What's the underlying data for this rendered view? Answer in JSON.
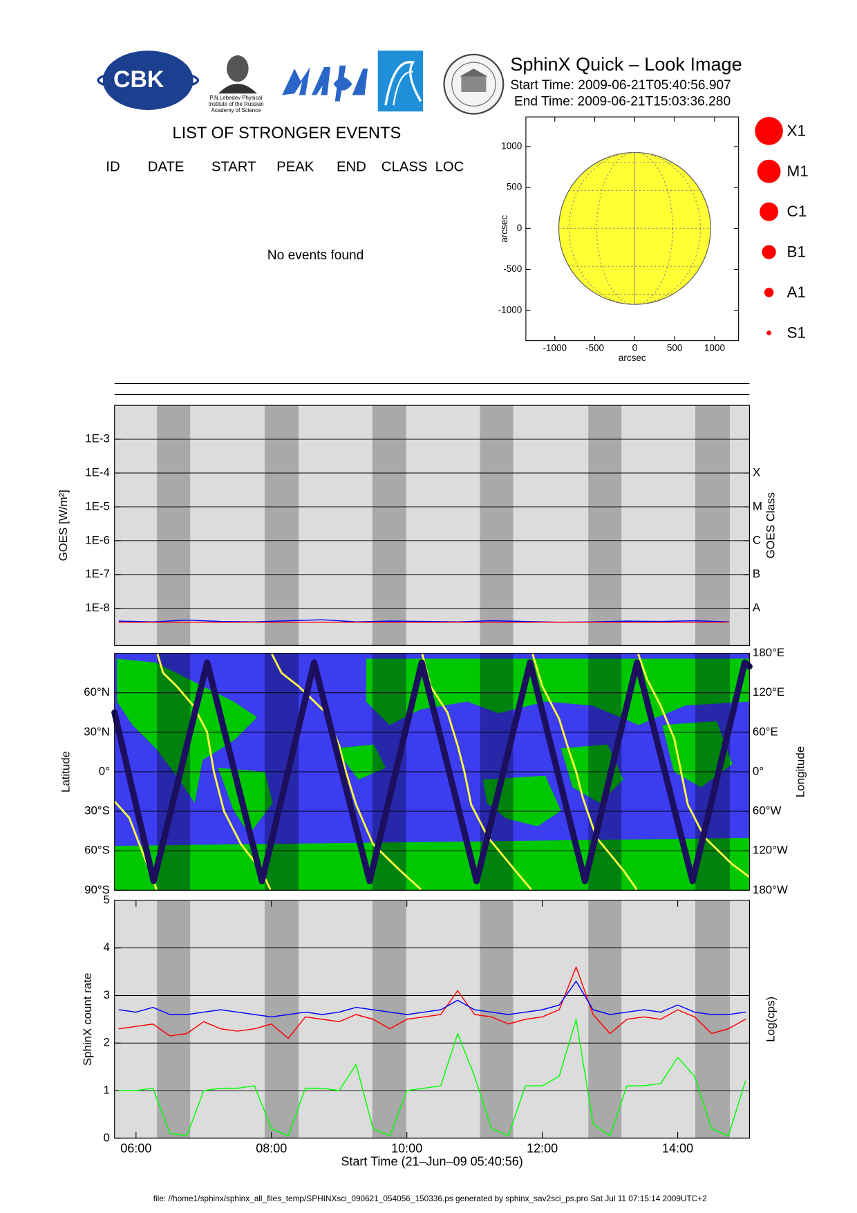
{
  "header": {
    "title": "SphinX Quick – Look Image",
    "start_time": "Start Time: 2009-06-21T05:40:56.907",
    "end_time": "End Time: 2009-06-21T15:03:36.280",
    "logo_cbk": "CBK",
    "logo_lebedev": [
      "P.N.Lebedev Physical",
      "Institute of the Russian",
      "Academy of Science"
    ]
  },
  "events": {
    "title": "LIST OF STRONGER EVENTS",
    "columns": [
      "ID",
      "DATE",
      "START",
      "PEAK",
      "END",
      "CLASS",
      "LOC"
    ],
    "message": "No events found"
  },
  "chart_data": [
    {
      "type": "disk",
      "xlabel": "arcsec",
      "ylabel": "arcsec",
      "xlim": [
        -1362,
        1300
      ],
      "ylim": [
        -1371,
        1362
      ],
      "xticks": [
        -1000,
        -500,
        0,
        500,
        1000
      ],
      "yticks": [
        -1000,
        -500,
        0,
        500,
        1000
      ],
      "disk_radius": 950,
      "color": "#ffff33",
      "flare_classes": [
        "X1",
        "M1",
        "C1",
        "B1",
        "A1",
        "S1"
      ],
      "flare_color": "#ff0000"
    },
    {
      "type": "line",
      "log": true,
      "grid": true,
      "ylabel": "GOES [W/m²]",
      "y2label": "GOES Class",
      "background": "#dcdcdc",
      "band_color": "#a9a9a9",
      "xlim": [
        5.6825,
        15.0601
      ],
      "ylim": [
        8e-10,
        0.01
      ],
      "yticks": [
        {
          "value": 0.001,
          "label": "1E-3"
        },
        {
          "value": 0.0001,
          "label": "1E-4"
        },
        {
          "value": 1e-05,
          "label": "1E-5"
        },
        {
          "value": 1e-06,
          "label": "1E-6"
        },
        {
          "value": 1e-07,
          "label": "1E-7"
        },
        {
          "value": 1e-08,
          "label": "1E-8"
        }
      ],
      "y2lim": [
        8e-10,
        0.01
      ],
      "y2ticks": [
        {
          "value": 0.0001,
          "label": "X"
        },
        {
          "value": 1e-05,
          "label": "M"
        },
        {
          "value": 1e-06,
          "label": "C"
        },
        {
          "value": 1e-07,
          "label": "B"
        },
        {
          "value": 1e-08,
          "label": "A"
        }
      ],
      "shaded_intervals": [
        [
          6.31,
          6.8
        ],
        [
          7.9,
          8.4
        ],
        [
          9.49,
          9.99
        ],
        [
          11.08,
          11.57
        ],
        [
          12.68,
          13.17
        ],
        [
          14.26,
          14.77
        ]
      ],
      "x": [
        5.75,
        6.25,
        6.75,
        7.25,
        7.75,
        8.25,
        8.75,
        9.25,
        9.75,
        10.25,
        10.75,
        11.25,
        11.75,
        12.25,
        12.75,
        13.25,
        13.75,
        14.25,
        14.75
      ],
      "series": [
        {
          "color": "#0000ff",
          "values": [
            4.2e-09,
            4e-09,
            4.5e-09,
            4.1e-09,
            4e-09,
            4.3e-09,
            4.6e-09,
            4e-09,
            4.2e-09,
            4.1e-09,
            4e-09,
            4.3e-09,
            4.1e-09,
            3.9e-09,
            4e-09,
            4.2e-09,
            4.1e-09,
            4.3e-09,
            4e-09
          ]
        },
        {
          "color": "#ff0000",
          "values": [
            3.9e-09,
            3.9e-09,
            3.9e-09,
            3.9e-09,
            3.9e-09,
            3.9e-09,
            3.9e-09,
            3.9e-09,
            3.9e-09,
            3.9e-09,
            3.9e-09,
            3.9e-09,
            3.9e-09,
            3.9e-09,
            3.9e-09,
            3.9e-09,
            3.9e-09,
            3.9e-09,
            3.9e-09
          ]
        }
      ]
    },
    {
      "type": "track",
      "grid": true,
      "ylabel": "Latitude",
      "y2label": "Longitude",
      "background": "#3c3cf0",
      "band_color": "rgba(0,0,40,0.35)",
      "xlim": [
        5.6825,
        15.0601
      ],
      "ylim": [
        -90,
        90
      ],
      "yticks": [
        {
          "value": 60,
          "label": "60°N"
        },
        {
          "value": 30,
          "label": "30°N"
        },
        {
          "value": 0,
          "label": "0°"
        },
        {
          "value": -30,
          "label": "30°S"
        },
        {
          "value": -60,
          "label": "60°S"
        },
        {
          "value": -90,
          "label": "90°S"
        }
      ],
      "y2lim": [
        -180,
        180
      ],
      "y2ticks": [
        {
          "value": 180,
          "label": "180°E"
        },
        {
          "value": 120,
          "label": "120°E"
        },
        {
          "value": 60,
          "label": "60°E"
        },
        {
          "value": 0,
          "label": "0°"
        },
        {
          "value": -60,
          "label": "60°W"
        },
        {
          "value": -120,
          "label": "120°W"
        },
        {
          "value": -180,
          "label": "180°W"
        }
      ],
      "shaded_intervals": [
        [
          6.31,
          6.8
        ],
        [
          7.9,
          8.4
        ],
        [
          9.49,
          9.99
        ],
        [
          11.08,
          11.57
        ],
        [
          12.68,
          13.17
        ],
        [
          14.26,
          14.77
        ]
      ],
      "series": [
        {
          "color": "#ffff40",
          "axis": "y2",
          "x": [
            5.682,
            5.9,
            6.05,
            6.2,
            6.3,
            6.31,
            6.32,
            6.4,
            6.6,
            6.85,
            7.05,
            7.15,
            7.3,
            7.55,
            7.85,
            7.98,
            7.99,
            8.01,
            8.15,
            8.4,
            8.8,
            9.0,
            9.1,
            9.25,
            9.5,
            9.9,
            10.2,
            10.21,
            10.23,
            10.35,
            10.6,
            10.75,
            10.85,
            10.95,
            11.2,
            11.6,
            11.83,
            11.84,
            11.86,
            12.0,
            12.25,
            12.4,
            12.5,
            12.6,
            12.8,
            13.2,
            13.39,
            13.4,
            13.42,
            13.55,
            13.75,
            13.95,
            14.05,
            14.15,
            14.4,
            14.8,
            15.06
          ],
          "values": [
            -45,
            -70,
            -110,
            -150,
            -178,
            null,
            178,
            150,
            130,
            100,
            60,
            0,
            -60,
            -110,
            -150,
            -178,
            null,
            178,
            150,
            130,
            90,
            40,
            0,
            -50,
            -110,
            -150,
            -178,
            null,
            178,
            130,
            90,
            40,
            0,
            -50,
            -100,
            -150,
            -178,
            null,
            178,
            130,
            80,
            30,
            0,
            -40,
            -100,
            -150,
            -178,
            null,
            178,
            140,
            100,
            50,
            0,
            -50,
            -100,
            -140,
            -160
          ]
        },
        {
          "color": "#1c0f5e",
          "x": [
            5.682,
            6.26,
            7.05,
            7.86,
            8.63,
            9.45,
            10.22,
            11.03,
            11.82,
            12.63,
            13.4,
            14.22,
            14.99,
            15.06
          ],
          "values": [
            45,
            -83,
            83,
            -83,
            83,
            -83,
            83,
            -83,
            83,
            -83,
            83,
            -83,
            83,
            80
          ]
        }
      ]
    },
    {
      "type": "line",
      "grid": true,
      "ylabel": "SphinX count rate",
      "y2label": "Log(cps)",
      "xlabel": "Start Time (21–Jun–09 05:40:56)",
      "background": "#dcdcdc",
      "band_color": "#a9a9a9",
      "xlim": [
        5.6825,
        15.0601
      ],
      "ylim": [
        0,
        5
      ],
      "yticks": [
        0,
        1,
        2,
        3,
        4,
        5
      ],
      "xticks": [
        {
          "value": 6,
          "label": "06:00"
        },
        {
          "value": 8,
          "label": "08:00"
        },
        {
          "value": 10,
          "label": "10:00"
        },
        {
          "value": 12,
          "label": "12:00"
        },
        {
          "value": 14,
          "label": "14:00"
        }
      ],
      "shaded_intervals": [
        [
          6.31,
          6.8
        ],
        [
          7.9,
          8.4
        ],
        [
          9.49,
          9.99
        ],
        [
          11.08,
          11.57
        ],
        [
          12.68,
          13.17
        ],
        [
          14.26,
          14.77
        ]
      ],
      "x": [
        5.75,
        6.0,
        6.25,
        6.5,
        6.75,
        7.0,
        7.25,
        7.5,
        7.75,
        8.0,
        8.25,
        8.5,
        8.75,
        9.0,
        9.25,
        9.5,
        9.75,
        10.0,
        10.25,
        10.5,
        10.75,
        11.0,
        11.25,
        11.5,
        11.75,
        12.0,
        12.25,
        12.5,
        12.75,
        13.0,
        13.25,
        13.5,
        13.75,
        14.0,
        14.25,
        14.5,
        14.75,
        15.0
      ],
      "series": [
        {
          "color": "#ff0000",
          "values": [
            2.3,
            2.35,
            2.4,
            2.15,
            2.2,
            2.45,
            2.3,
            2.25,
            2.3,
            2.4,
            2.1,
            2.55,
            2.5,
            2.45,
            2.6,
            2.5,
            2.3,
            2.5,
            2.55,
            2.6,
            3.1,
            2.6,
            2.55,
            2.4,
            2.5,
            2.55,
            2.7,
            3.6,
            2.6,
            2.2,
            2.5,
            2.55,
            2.5,
            2.7,
            2.55,
            2.2,
            2.3,
            2.5
          ]
        },
        {
          "color": "#0000ff",
          "values": [
            2.7,
            2.65,
            2.75,
            2.6,
            2.6,
            2.65,
            2.7,
            2.65,
            2.6,
            2.55,
            2.6,
            2.65,
            2.6,
            2.65,
            2.75,
            2.7,
            2.65,
            2.6,
            2.65,
            2.7,
            2.9,
            2.7,
            2.65,
            2.6,
            2.65,
            2.7,
            2.8,
            3.3,
            2.7,
            2.6,
            2.65,
            2.7,
            2.65,
            2.8,
            2.65,
            2.6,
            2.6,
            2.65
          ]
        },
        {
          "color": "#00ff00",
          "values": [
            1.0,
            1.0,
            1.05,
            0.1,
            0.05,
            1.0,
            1.05,
            1.05,
            1.1,
            0.2,
            0.05,
            1.05,
            1.05,
            1.0,
            1.55,
            0.2,
            0.05,
            1.0,
            1.05,
            1.1,
            2.2,
            1.3,
            0.2,
            0.05,
            1.1,
            1.1,
            1.3,
            2.5,
            0.3,
            0.05,
            1.1,
            1.1,
            1.15,
            1.7,
            1.3,
            0.2,
            0.05,
            1.2
          ]
        }
      ]
    }
  ],
  "footer": "file: //home1/sphinx/sphinx_all_files_temp/SPHINXsci_090621_054056_150336.ps generated by sphinx_sav2sci_ps.pro Sat Jul 11 07:15:14 2009UTC+2"
}
